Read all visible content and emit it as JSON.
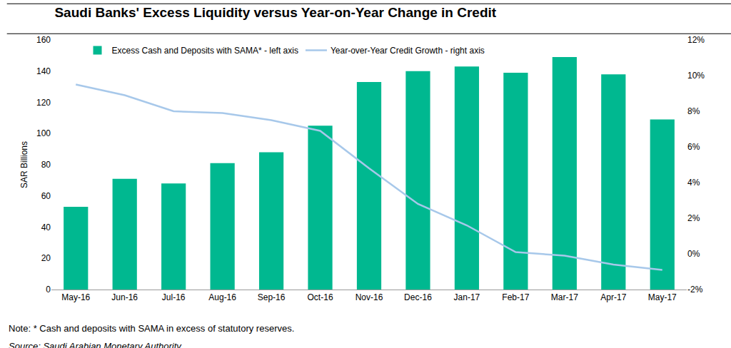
{
  "chart_data": {
    "type": "bar",
    "title": "Saudi Banks' Excess Liquidity versus Year-on-Year Change in Credit",
    "y_label": "SAR Billions",
    "annotations": [
      "Note: * Cash and deposits with SAMA in excess of statutory reserves.",
      "Source: Saudi Arabian Monetary Authority"
    ],
    "categories": [
      "May-16",
      "Jun-16",
      "Jul-16",
      "Aug-16",
      "Sep-16",
      "Oct-16",
      "Nov-16",
      "Dec-16",
      "Jan-17",
      "Feb-17",
      "Mar-17",
      "Apr-17",
      "May-17"
    ],
    "series": [
      {
        "name": "Excess Cash and Deposits with SAMA* - left axis",
        "type": "bar",
        "color": "#00b890",
        "values": [
          53,
          71,
          68,
          81,
          88,
          105,
          133,
          140,
          143,
          139,
          149,
          138,
          109
        ]
      },
      {
        "name": "Year-over-Year Credit Growth - right axis",
        "type": "line",
        "color": "#a7c8ea",
        "axis": "y2",
        "values": [
          9.5,
          8.9,
          8.0,
          7.9,
          7.5,
          6.9,
          4.8,
          2.8,
          1.6,
          0.1,
          -0.1,
          -0.6,
          -0.9
        ]
      }
    ],
    "ylim": [
      0,
      160
    ],
    "yticks": [
      0,
      20,
      40,
      60,
      80,
      100,
      120,
      140,
      160
    ],
    "y2lim": [
      -2,
      12
    ],
    "y2ticks": [
      {
        "value": -2,
        "label": "-2%"
      },
      {
        "value": 0,
        "label": "0%"
      },
      {
        "value": 2,
        "label": "2%"
      },
      {
        "value": 4,
        "label": "4%"
      },
      {
        "value": 6,
        "label": "6%"
      },
      {
        "value": 8,
        "label": "8%"
      },
      {
        "value": 10,
        "label": "10%"
      },
      {
        "value": 12,
        "label": "12%"
      }
    ],
    "grid": false,
    "legend": "top"
  }
}
